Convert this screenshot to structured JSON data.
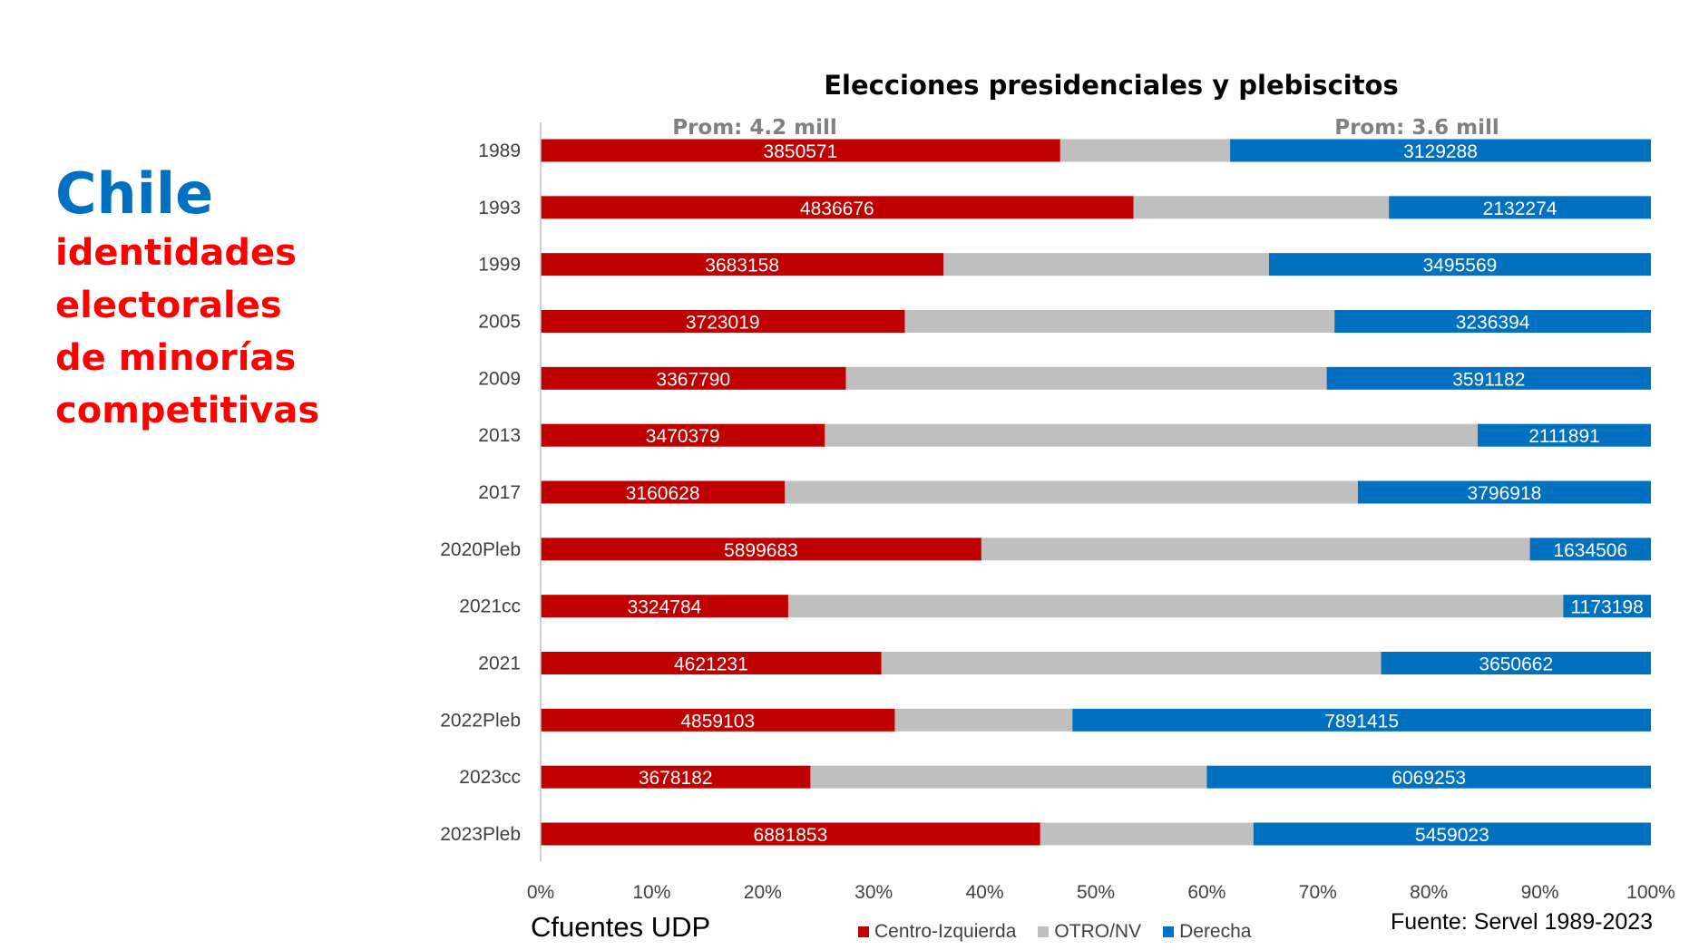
{
  "left_title": {
    "country": "Chile",
    "country_color": "#0070C0",
    "lines": [
      "identidades",
      "electorales",
      "de minorías",
      "competitivas"
    ],
    "lines_color": "#FF0000"
  },
  "footer": {
    "author": "Cfuentes UDP",
    "source": "Fuente: Servel 1989-2023"
  },
  "chart_data": {
    "type": "bar",
    "orientation": "horizontal",
    "stacked": "percent",
    "title": "Elecciones presidenciales y plebiscitos",
    "annotations": [
      "Prom: 4.2 mill",
      "Prom: 3.6 mill"
    ],
    "categories": [
      "1989",
      "1993",
      "1999",
      "2005",
      "2009",
      "2013",
      "2017",
      "2020Pleb",
      "2021cc",
      "2021",
      "2022Pleb",
      "2023cc",
      "2023Pleb"
    ],
    "x_ticks": [
      "0%",
      "10%",
      "20%",
      "30%",
      "40%",
      "50%",
      "60%",
      "70%",
      "80%",
      "90%",
      "100%"
    ],
    "xlim": [
      0,
      100
    ],
    "legend_position": "bottom",
    "series": [
      {
        "name": "Centro-Izquierda",
        "color": "#C00000",
        "values": [
          3850571,
          4836676,
          3683158,
          3723019,
          3367790,
          3470379,
          3160628,
          5899683,
          3324784,
          4621231,
          4859103,
          3678182,
          6881853
        ],
        "percent": [
          46.8,
          53.4,
          36.3,
          32.8,
          27.5,
          25.6,
          22.0,
          39.7,
          22.3,
          30.7,
          31.9,
          24.3,
          45.0
        ]
      },
      {
        "name": "OTRO/NV",
        "color": "#BFBFBF",
        "percent": [
          15.3,
          23.0,
          29.3,
          38.7,
          43.3,
          58.8,
          51.6,
          49.4,
          69.8,
          45.0,
          16.0,
          35.7,
          19.2
        ]
      },
      {
        "name": "Derecha",
        "color": "#0070C0",
        "values": [
          3129288,
          2132274,
          3495569,
          3236394,
          3591182,
          2111891,
          3796918,
          1634506,
          1173198,
          3650662,
          7891415,
          6069253,
          5459023
        ],
        "percent": [
          37.9,
          23.6,
          34.4,
          28.5,
          29.2,
          15.6,
          26.4,
          10.9,
          7.9,
          24.3,
          52.1,
          40.0,
          35.8
        ]
      }
    ]
  }
}
